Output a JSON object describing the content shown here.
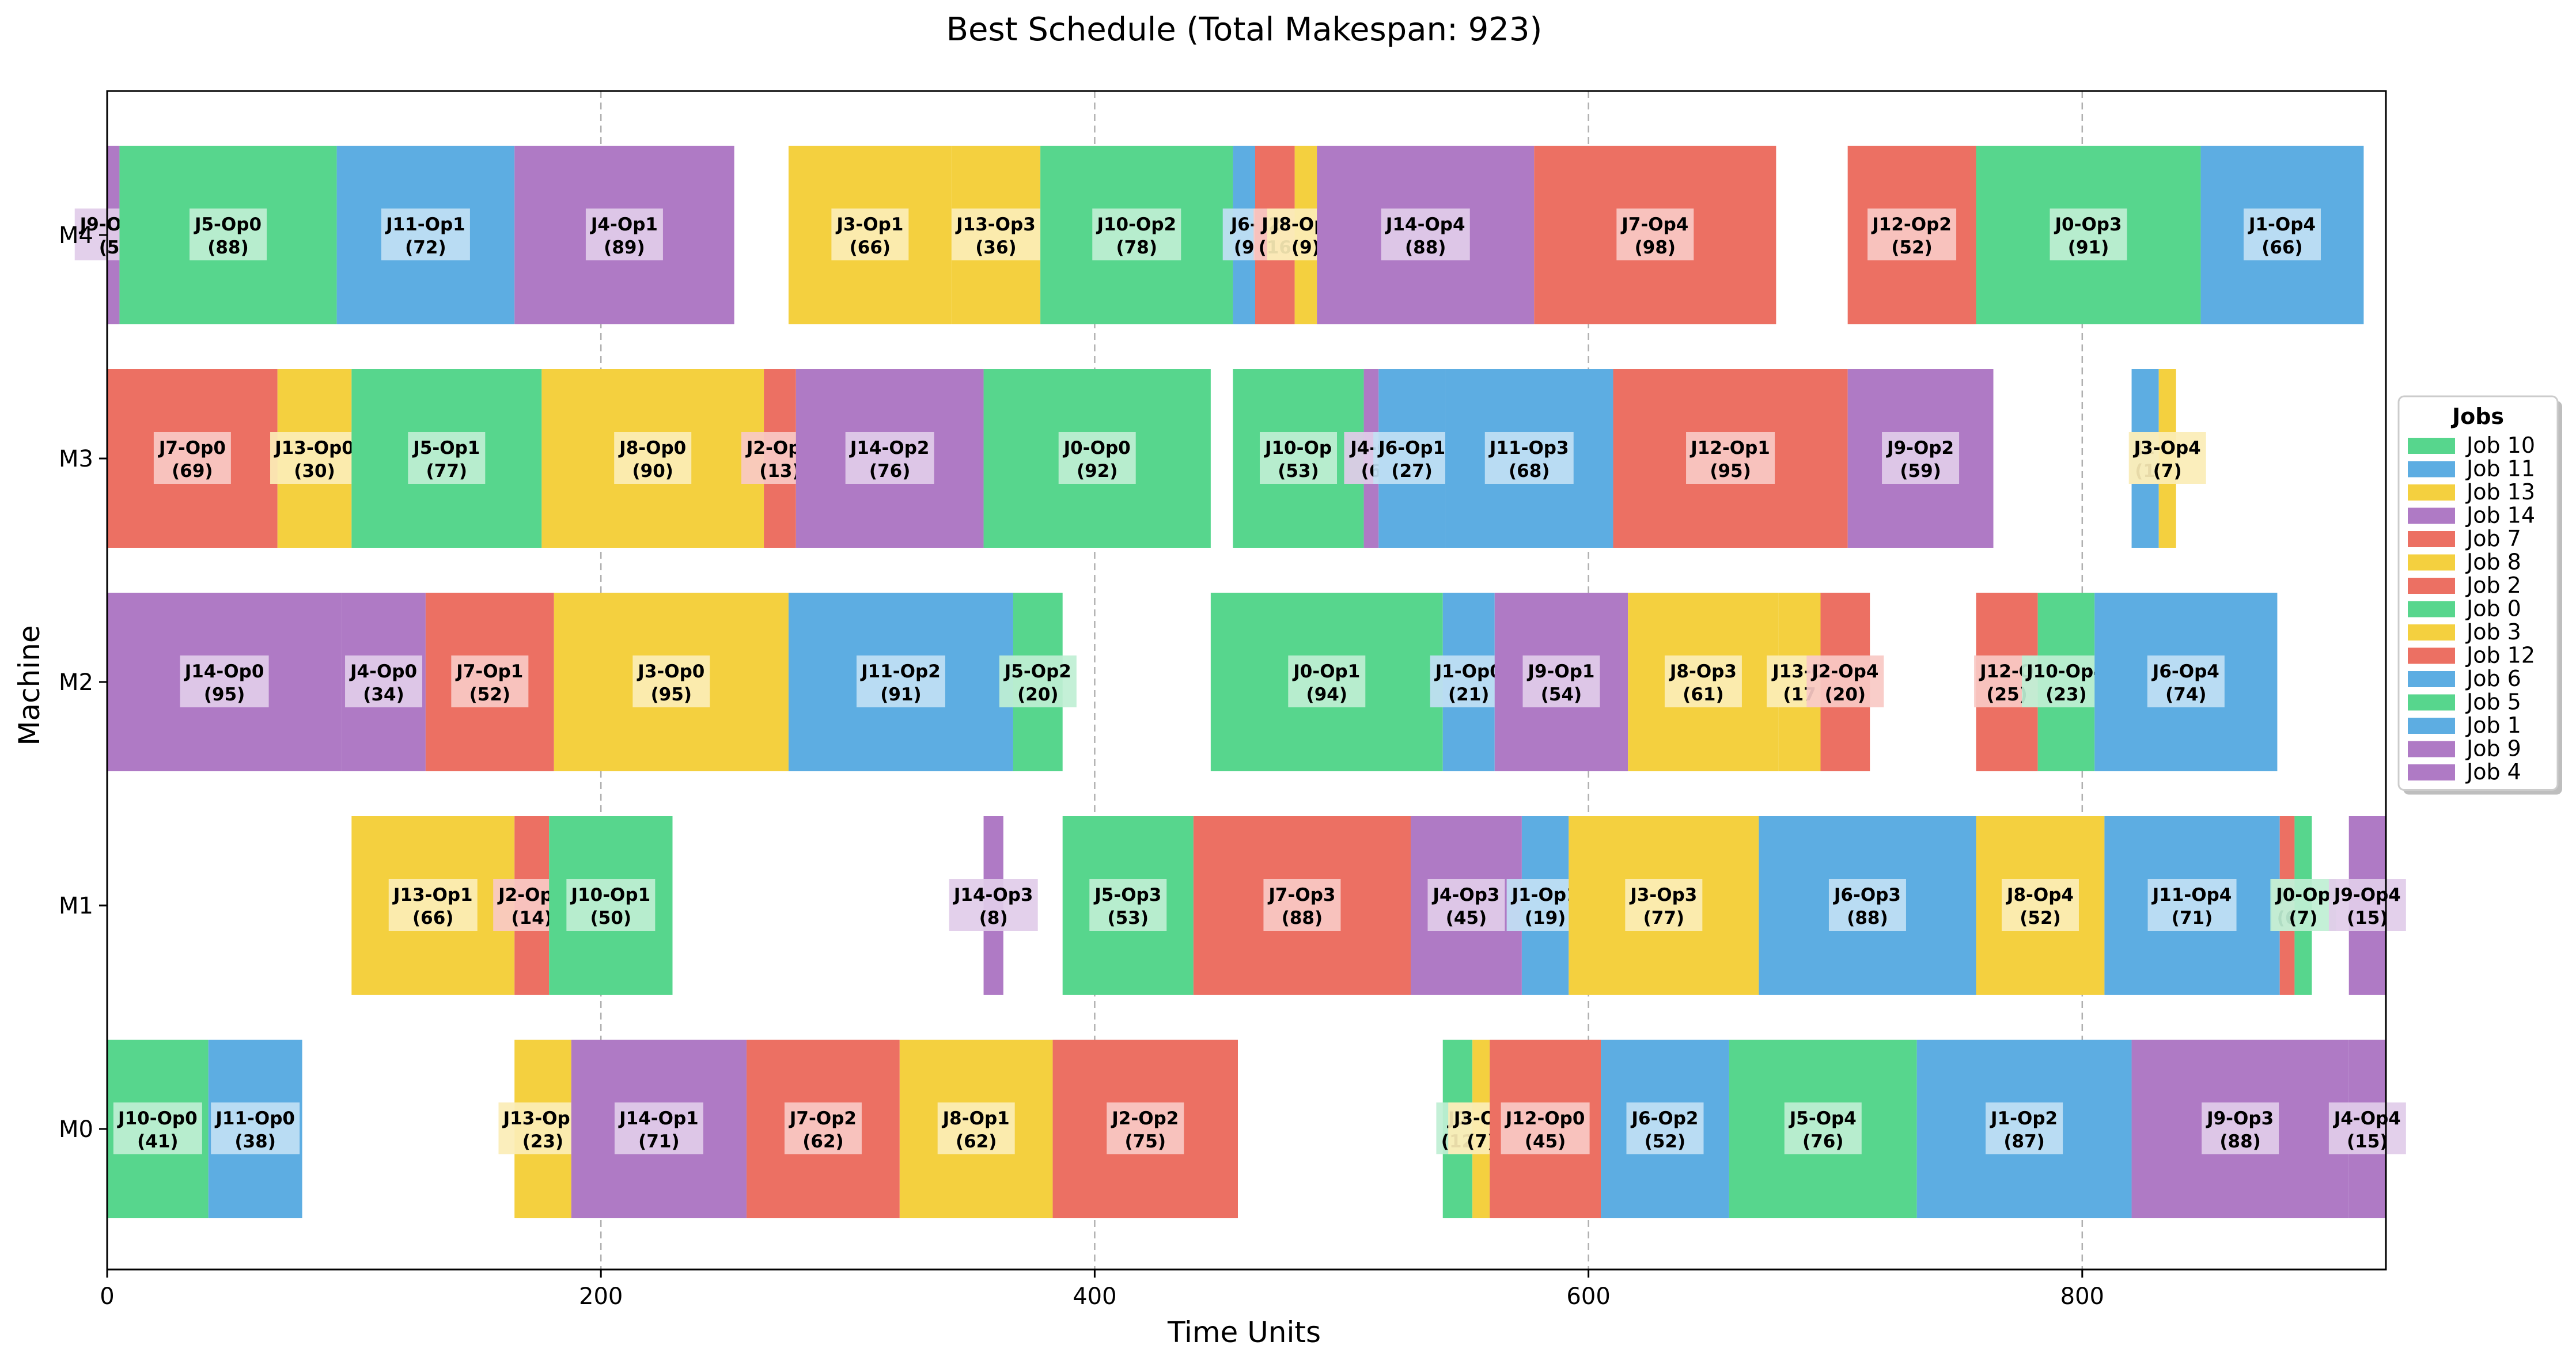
{
  "chart_data": {
    "type": "gantt",
    "title": "Best Schedule (Total Makespan: 923)",
    "xlabel": "Time Units",
    "ylabel": "Machine",
    "xlim": [
      0,
      923
    ],
    "xticks": [
      0,
      200,
      400,
      600,
      800
    ],
    "machines": [
      "M0",
      "M1",
      "M2",
      "M3",
      "M4"
    ],
    "grid": "vertical dashed at x ticks",
    "legend": {
      "title": "Jobs",
      "placement": "right-outside",
      "entries": [
        {
          "name": "Job 10",
          "color": "#57d68d"
        },
        {
          "name": "Job 11",
          "color": "#5dade2"
        },
        {
          "name": "Job 13",
          "color": "#f4d03f"
        },
        {
          "name": "Job 14",
          "color": "#af7ac5"
        },
        {
          "name": "Job 7",
          "color": "#ec7063"
        },
        {
          "name": "Job 8",
          "color": "#f4d03f"
        },
        {
          "name": "Job 2",
          "color": "#ec7063"
        },
        {
          "name": "Job 0",
          "color": "#57d68d"
        },
        {
          "name": "Job 3",
          "color": "#f4d03f"
        },
        {
          "name": "Job 12",
          "color": "#ec7063"
        },
        {
          "name": "Job 6",
          "color": "#5dade2"
        },
        {
          "name": "Job 5",
          "color": "#57d68d"
        },
        {
          "name": "Job 1",
          "color": "#5dade2"
        },
        {
          "name": "Job 9",
          "color": "#af7ac5"
        },
        {
          "name": "Job 4",
          "color": "#af7ac5"
        }
      ]
    },
    "operations": [
      {
        "machine": "M0",
        "job": "Job 10",
        "label": "J10-Op0",
        "duration_label": "(41)",
        "start": 0,
        "duration": 41
      },
      {
        "machine": "M0",
        "job": "Job 11",
        "label": "J11-Op0",
        "duration_label": "(38)",
        "start": 41,
        "duration": 38
      },
      {
        "machine": "M0",
        "job": "Job 13",
        "label": "J13-Op2",
        "duration_label": "(23)",
        "start": 165,
        "duration": 23
      },
      {
        "machine": "M0",
        "job": "Job 14",
        "label": "J14-Op1",
        "duration_label": "(71)",
        "start": 188,
        "duration": 71
      },
      {
        "machine": "M0",
        "job": "Job 7",
        "label": "J7-Op2",
        "duration_label": "(62)",
        "start": 259,
        "duration": 62
      },
      {
        "machine": "M0",
        "job": "Job 8",
        "label": "J8-Op1",
        "duration_label": "(62)",
        "start": 321,
        "duration": 62
      },
      {
        "machine": "M0",
        "job": "Job 2",
        "label": "J2-Op2",
        "duration_label": "(75)",
        "start": 383,
        "duration": 75
      },
      {
        "machine": "M0",
        "job": "Job 0",
        "label": "J0",
        "duration_label": "(12",
        "start": 541,
        "duration": 12
      },
      {
        "machine": "M0",
        "job": "Job 3",
        "label": "J3-Op",
        "duration_label": "(7)",
        "start": 553,
        "duration": 7
      },
      {
        "machine": "M0",
        "job": "Job 12",
        "label": "J12-Op0",
        "duration_label": "(45)",
        "start": 560,
        "duration": 45
      },
      {
        "machine": "M0",
        "job": "Job 6",
        "label": "J6-Op2",
        "duration_label": "(52)",
        "start": 605,
        "duration": 52
      },
      {
        "machine": "M0",
        "job": "Job 5",
        "label": "J5-Op4",
        "duration_label": "(76)",
        "start": 657,
        "duration": 76
      },
      {
        "machine": "M0",
        "job": "Job 1",
        "label": "J1-Op2",
        "duration_label": "(87)",
        "start": 733,
        "duration": 87
      },
      {
        "machine": "M0",
        "job": "Job 9",
        "label": "J9-Op3",
        "duration_label": "(88)",
        "start": 820,
        "duration": 88
      },
      {
        "machine": "M0",
        "job": "Job 4",
        "label": "J4-Op4",
        "duration_label": "(15)",
        "start": 908,
        "duration": 15
      },
      {
        "machine": "M1",
        "job": "Job 13",
        "label": "J13-Op1",
        "duration_label": "(66)",
        "start": 99,
        "duration": 66
      },
      {
        "machine": "M1",
        "job": "Job 2",
        "label": "J2-Op0",
        "duration_label": "(14)",
        "start": 165,
        "duration": 14
      },
      {
        "machine": "M1",
        "job": "Job 10",
        "label": "J10-Op1",
        "duration_label": "(50)",
        "start": 179,
        "duration": 50
      },
      {
        "machine": "M1",
        "job": "Job 14",
        "label": "J14-Op3",
        "duration_label": "(8)",
        "start": 355,
        "duration": 8
      },
      {
        "machine": "M1",
        "job": "Job 5",
        "label": "J5-Op3",
        "duration_label": "(53)",
        "start": 387,
        "duration": 53
      },
      {
        "machine": "M1",
        "job": "Job 7",
        "label": "J7-Op3",
        "duration_label": "(88)",
        "start": 440,
        "duration": 88
      },
      {
        "machine": "M1",
        "job": "Job 4",
        "label": "J4-Op3",
        "duration_label": "(45)",
        "start": 528,
        "duration": 45
      },
      {
        "machine": "M1",
        "job": "Job 1",
        "label": "J1-Op1",
        "duration_label": "(19)",
        "start": 573,
        "duration": 19
      },
      {
        "machine": "M1",
        "job": "Job 3",
        "label": "J3-Op3",
        "duration_label": "(77)",
        "start": 592,
        "duration": 77
      },
      {
        "machine": "M1",
        "job": "Job 6",
        "label": "J6-Op3",
        "duration_label": "(88)",
        "start": 669,
        "duration": 88
      },
      {
        "machine": "M1",
        "job": "Job 8",
        "label": "J8-Op4",
        "duration_label": "(52)",
        "start": 757,
        "duration": 52
      },
      {
        "machine": "M1",
        "job": "Job 11",
        "label": "J11-Op4",
        "duration_label": "(71)",
        "start": 809,
        "duration": 71
      },
      {
        "machine": "M1",
        "job": "Job 12",
        "label": "J1",
        "duration_label": "(6",
        "start": 880,
        "duration": 6
      },
      {
        "machine": "M1",
        "job": "Job 0",
        "label": "J0-Op",
        "duration_label": "(7)",
        "start": 886,
        "duration": 7
      },
      {
        "machine": "M1",
        "job": "Job 9",
        "label": "J9-Op4",
        "duration_label": "(15)",
        "start": 908,
        "duration": 15
      },
      {
        "machine": "M2",
        "job": "Job 14",
        "label": "J14-Op0",
        "duration_label": "(95)",
        "start": 0,
        "duration": 95
      },
      {
        "machine": "M2",
        "job": "Job 4",
        "label": "J4-Op0",
        "duration_label": "(34)",
        "start": 95,
        "duration": 34
      },
      {
        "machine": "M2",
        "job": "Job 7",
        "label": "J7-Op1",
        "duration_label": "(52)",
        "start": 129,
        "duration": 52
      },
      {
        "machine": "M2",
        "job": "Job 3",
        "label": "J3-Op0",
        "duration_label": "(95)",
        "start": 181,
        "duration": 95
      },
      {
        "machine": "M2",
        "job": "Job 11",
        "label": "J11-Op2",
        "duration_label": "(91)",
        "start": 276,
        "duration": 91
      },
      {
        "machine": "M2",
        "job": "Job 5",
        "label": "J5-Op2",
        "duration_label": "(20)",
        "start": 367,
        "duration": 20
      },
      {
        "machine": "M2",
        "job": "Job 0",
        "label": "J0-Op1",
        "duration_label": "(94)",
        "start": 447,
        "duration": 94
      },
      {
        "machine": "M2",
        "job": "Job 1",
        "label": "J1-Op0",
        "duration_label": "(21)",
        "start": 541,
        "duration": 21
      },
      {
        "machine": "M2",
        "job": "Job 9",
        "label": "J9-Op1",
        "duration_label": "(54)",
        "start": 562,
        "duration": 54
      },
      {
        "machine": "M2",
        "job": "Job 8",
        "label": "J8-Op3",
        "duration_label": "(61)",
        "start": 616,
        "duration": 61
      },
      {
        "machine": "M2",
        "job": "Job 13",
        "label": "J13-O",
        "duration_label": "(17",
        "start": 677,
        "duration": 17
      },
      {
        "machine": "M2",
        "job": "Job 2",
        "label": "J2-Op4",
        "duration_label": "(20)",
        "start": 694,
        "duration": 20
      },
      {
        "machine": "M2",
        "job": "Job 12",
        "label": "J12-O",
        "duration_label": "(25)",
        "start": 757,
        "duration": 25
      },
      {
        "machine": "M2",
        "job": "Job 10",
        "label": "J10-Op4",
        "duration_label": "(23)",
        "start": 782,
        "duration": 23
      },
      {
        "machine": "M2",
        "job": "Job 6",
        "label": "J6-Op4",
        "duration_label": "(74)",
        "start": 805,
        "duration": 74
      },
      {
        "machine": "M3",
        "job": "Job 7",
        "label": "J7-Op0",
        "duration_label": "(69)",
        "start": 0,
        "duration": 69
      },
      {
        "machine": "M3",
        "job": "Job 13",
        "label": "J13-Op0",
        "duration_label": "(30)",
        "start": 69,
        "duration": 30
      },
      {
        "machine": "M3",
        "job": "Job 5",
        "label": "J5-Op1",
        "duration_label": "(77)",
        "start": 99,
        "duration": 77
      },
      {
        "machine": "M3",
        "job": "Job 8",
        "label": "J8-Op0",
        "duration_label": "(90)",
        "start": 176,
        "duration": 90
      },
      {
        "machine": "M3",
        "job": "Job 2",
        "label": "J2-Op1",
        "duration_label": "(13)",
        "start": 266,
        "duration": 13
      },
      {
        "machine": "M3",
        "job": "Job 14",
        "label": "J14-Op2",
        "duration_label": "(76)",
        "start": 279,
        "duration": 76
      },
      {
        "machine": "M3",
        "job": "Job 0",
        "label": "J0-Op0",
        "duration_label": "(92)",
        "start": 355,
        "duration": 92
      },
      {
        "machine": "M3",
        "job": "Job 10",
        "label": "J10-Op",
        "duration_label": "(53)",
        "start": 456,
        "duration": 53
      },
      {
        "machine": "M3",
        "job": "Job 4",
        "label": "J4-O",
        "duration_label": "(6",
        "start": 509,
        "duration": 6
      },
      {
        "machine": "M3",
        "job": "Job 6",
        "label": "J6-Op1",
        "duration_label": "(27)",
        "start": 515,
        "duration": 27
      },
      {
        "machine": "M3",
        "job": "Job 11",
        "label": "J11-Op3",
        "duration_label": "(68)",
        "start": 542,
        "duration": 68
      },
      {
        "machine": "M3",
        "job": "Job 12",
        "label": "J12-Op1",
        "duration_label": "(95)",
        "start": 610,
        "duration": 95
      },
      {
        "machine": "M3",
        "job": "Job 9",
        "label": "J9-Op2",
        "duration_label": "(59)",
        "start": 705,
        "duration": 59
      },
      {
        "machine": "M3",
        "job": "Job 1",
        "label": "J1",
        "duration_label": "(1",
        "start": 820,
        "duration": 11
      },
      {
        "machine": "M3",
        "job": "Job 3",
        "label": "J3-Op4",
        "duration_label": "(7)",
        "start": 831,
        "duration": 7
      },
      {
        "machine": "M4",
        "job": "Job 9",
        "label": "J9-Op0",
        "duration_label": "(5)",
        "start": 0,
        "duration": 5
      },
      {
        "machine": "M4",
        "job": "Job 5",
        "label": "J5-Op0",
        "duration_label": "(88)",
        "start": 5,
        "duration": 88
      },
      {
        "machine": "M4",
        "job": "Job 11",
        "label": "J11-Op1",
        "duration_label": "(72)",
        "start": 93,
        "duration": 72
      },
      {
        "machine": "M4",
        "job": "Job 4",
        "label": "J4-Op1",
        "duration_label": "(89)",
        "start": 165,
        "duration": 89
      },
      {
        "machine": "M4",
        "job": "Job 3",
        "label": "J3-Op1",
        "duration_label": "(66)",
        "start": 276,
        "duration": 66
      },
      {
        "machine": "M4",
        "job": "Job 13",
        "label": "J13-Op3",
        "duration_label": "(36)",
        "start": 342,
        "duration": 36
      },
      {
        "machine": "M4",
        "job": "Job 10",
        "label": "J10-Op2",
        "duration_label": "(78)",
        "start": 378,
        "duration": 78
      },
      {
        "machine": "M4",
        "job": "Job 6",
        "label": "J6-",
        "duration_label": "(9",
        "start": 456,
        "duration": 9
      },
      {
        "machine": "M4",
        "job": "Job 2",
        "label": "J2-",
        "duration_label": "(16",
        "start": 465,
        "duration": 16
      },
      {
        "machine": "M4",
        "job": "Job 8",
        "label": "J8-Op2",
        "duration_label": "(9)",
        "start": 481,
        "duration": 9
      },
      {
        "machine": "M4",
        "job": "Job 14",
        "label": "J14-Op4",
        "duration_label": "(88)",
        "start": 490,
        "duration": 88
      },
      {
        "machine": "M4",
        "job": "Job 7",
        "label": "J7-Op4",
        "duration_label": "(98)",
        "start": 578,
        "duration": 98
      },
      {
        "machine": "M4",
        "job": "Job 12",
        "label": "J12-Op2",
        "duration_label": "(52)",
        "start": 705,
        "duration": 52
      },
      {
        "machine": "M4",
        "job": "Job 0",
        "label": "J0-Op3",
        "duration_label": "(91)",
        "start": 757,
        "duration": 91
      },
      {
        "machine": "M4",
        "job": "Job 1",
        "label": "J1-Op4",
        "duration_label": "(66)",
        "start": 848,
        "duration": 66
      }
    ]
  }
}
